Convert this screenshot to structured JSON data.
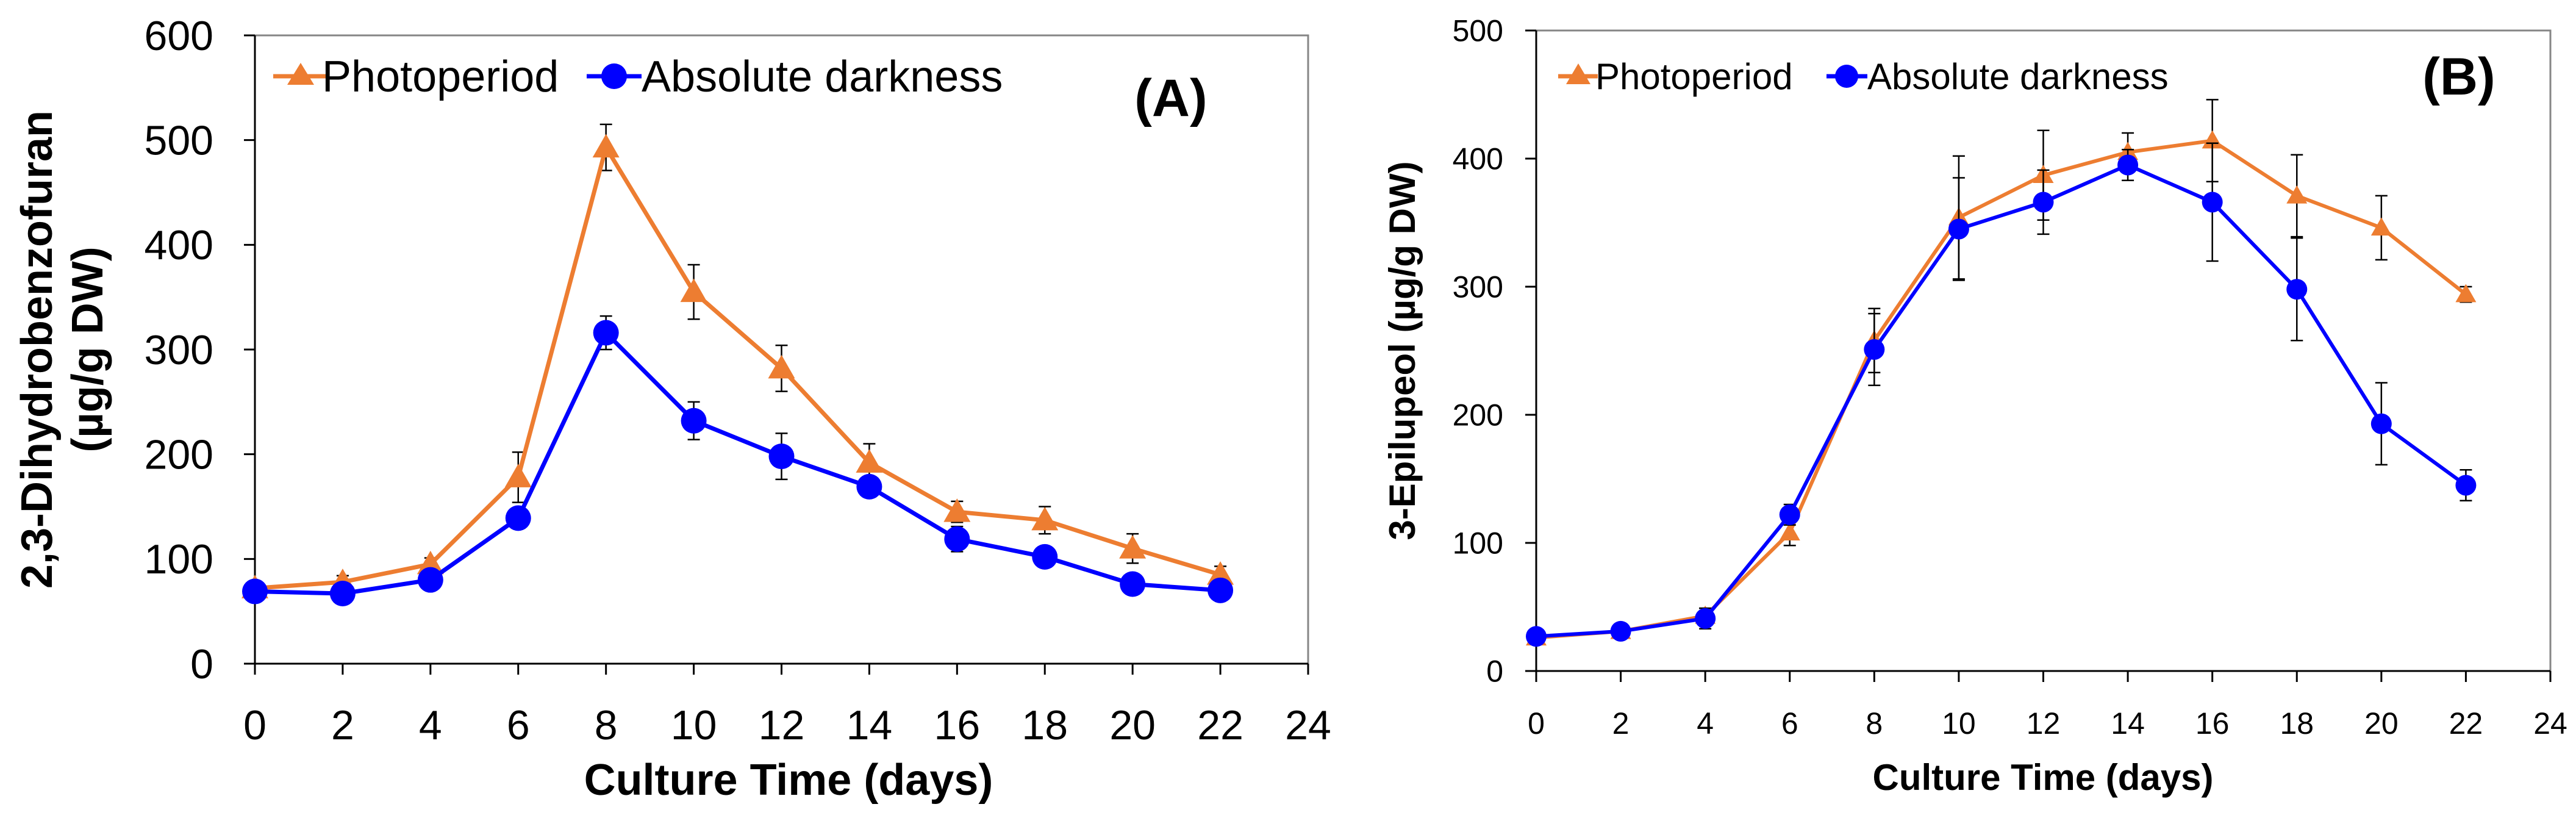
{
  "chart_data": [
    {
      "type": "line",
      "panel_label": "(A)",
      "title": "",
      "xlabel": "Culture Time (days)",
      "ylabel_line1": "2,3-Dihydrobenzofuran",
      "ylabel_line2": "(µg/g DW)",
      "xlim": [
        0,
        24
      ],
      "ylim": [
        0,
        600
      ],
      "x_ticks": [
        0,
        2,
        4,
        6,
        8,
        10,
        12,
        14,
        16,
        18,
        20,
        22,
        24
      ],
      "y_ticks": [
        0,
        100,
        200,
        300,
        400,
        500,
        600
      ],
      "legend_position": "top-left",
      "x": [
        0,
        2,
        4,
        6,
        8,
        10,
        12,
        14,
        16,
        18,
        20,
        22
      ],
      "series": [
        {
          "name": "Photoperiod",
          "color": "#ED7D31",
          "marker": "triangle",
          "values": [
            72,
            78,
            95,
            178,
            493,
            355,
            282,
            192,
            145,
            137,
            110,
            85
          ],
          "errors": [
            4,
            6,
            6,
            24,
            22,
            26,
            22,
            18,
            10,
            13,
            14,
            8
          ]
        },
        {
          "name": "Absolute darkness",
          "color": "#0000FF",
          "marker": "circle",
          "values": [
            69,
            67,
            80,
            139,
            316,
            232,
            198,
            169,
            119,
            102,
            76,
            70
          ],
          "errors": [
            3,
            3,
            5,
            6,
            16,
            18,
            22,
            10,
            12,
            8,
            6,
            6
          ]
        }
      ]
    },
    {
      "type": "line",
      "panel_label": "(B)",
      "title": "",
      "xlabel": "Culture Time (days)",
      "ylabel_line1": "3-Epilupeol (µg/g DW)",
      "ylabel_line2": "",
      "xlim": [
        0,
        24
      ],
      "ylim": [
        0,
        500
      ],
      "x_ticks": [
        0,
        2,
        4,
        6,
        8,
        10,
        12,
        14,
        16,
        18,
        20,
        22,
        24
      ],
      "y_ticks": [
        0,
        100,
        200,
        300,
        400,
        500
      ],
      "legend_position": "top-left",
      "x": [
        0,
        2,
        4,
        6,
        8,
        10,
        12,
        14,
        16,
        18,
        20,
        22
      ],
      "series": [
        {
          "name": "Photoperiod",
          "color": "#ED7D31",
          "marker": "triangle",
          "values": [
            26,
            31,
            43,
            108,
            258,
            354,
            387,
            405,
            414,
            371,
            346,
            294
          ],
          "errors": [
            3,
            3,
            6,
            10,
            25,
            48,
            35,
            15,
            32,
            32,
            25,
            6
          ]
        },
        {
          "name": "Absolute darkness",
          "color": "#0000FF",
          "marker": "circle",
          "values": [
            27,
            31,
            41,
            122,
            251,
            345,
            366,
            395,
            366,
            298,
            193,
            145
          ],
          "errors": [
            3,
            3,
            8,
            8,
            28,
            40,
            25,
            12,
            46,
            40,
            32,
            12
          ]
        }
      ]
    }
  ]
}
